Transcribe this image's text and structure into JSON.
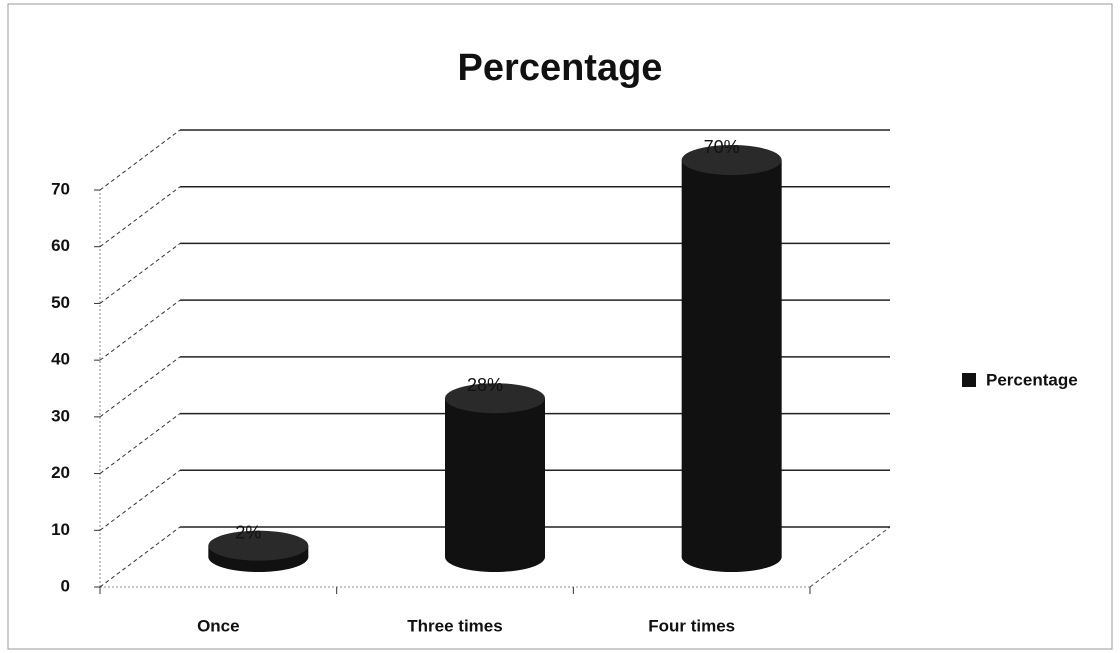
{
  "chart_data": {
    "type": "bar",
    "title": "Percentage",
    "categories": [
      "Once",
      "Three times",
      "Four times"
    ],
    "series": [
      {
        "name": "Percentage",
        "color": "#111111",
        "values": [
          2,
          28,
          70
        ],
        "value_labels": [
          "2%",
          "28%",
          "70%"
        ]
      }
    ],
    "ylim": [
      0,
      70
    ],
    "yticks": [
      0,
      10,
      20,
      30,
      40,
      50,
      60,
      70
    ],
    "grid": true,
    "legend": "right"
  }
}
